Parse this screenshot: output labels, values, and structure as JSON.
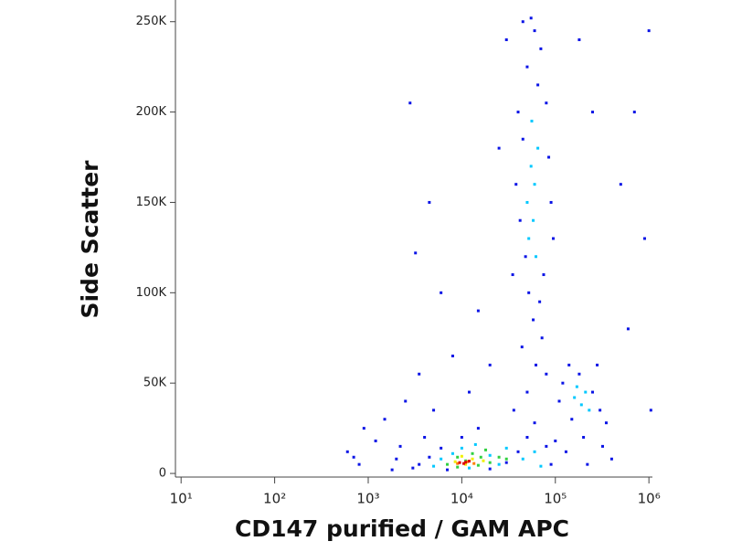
{
  "chart_data": {
    "type": "scatter",
    "x_label": "CD147 purified / GAM APC",
    "y_label": "Side Scatter",
    "xscale": "log",
    "xlim": [
      8.7,
      1090000
    ],
    "ylim": [
      -2000,
      262000
    ],
    "xticks": [
      {
        "value": 10,
        "label": "10¹"
      },
      {
        "value": 100,
        "label": "10²"
      },
      {
        "value": 1000,
        "label": "10³"
      },
      {
        "value": 10000,
        "label": "10⁴"
      },
      {
        "value": 100000,
        "label": "10⁵"
      },
      {
        "value": 1000000,
        "label": "10⁶"
      }
    ],
    "yticks": [
      0,
      {
        "value": 50000,
        "label": "50K"
      },
      {
        "value": 100000,
        "label": "100K"
      },
      {
        "value": 150000,
        "label": "150K"
      },
      {
        "value": 200000,
        "label": "200K"
      },
      {
        "value": 250000,
        "label": "250K"
      }
    ],
    "series": [
      {
        "color": "#0a14e6",
        "x": [
          600,
          800,
          1200,
          1500,
          2000,
          2500,
          3000,
          4000,
          5000,
          1800,
          900,
          2200,
          700,
          3500,
          2800,
          3200,
          4500,
          6000,
          8000,
          12000,
          15000,
          20000,
          25000,
          30000,
          35000,
          45000,
          55000,
          60000,
          70000,
          50000,
          65000,
          40000,
          80000,
          45000,
          85000,
          38000,
          90000,
          42000,
          95000,
          48000,
          75000,
          52000,
          68000,
          58000,
          72000,
          44000,
          62000,
          80000,
          50000,
          36000,
          120000,
          140000,
          180000,
          250000,
          300000,
          350000,
          200000,
          150000,
          110000,
          280000,
          320000,
          400000,
          130000,
          220000,
          700000,
          1000000,
          900000,
          600000,
          1050000,
          500000,
          250000,
          180000,
          3500,
          4500,
          6000,
          7000,
          10000,
          15000,
          20000,
          30000,
          40000,
          50000,
          60000,
          80000,
          90000,
          100000
        ],
        "values": [
          12000,
          5000,
          18000,
          30000,
          8000,
          40000,
          3000,
          20000,
          35000,
          2000,
          25000,
          15000,
          9000,
          55000,
          205000,
          122000,
          150000,
          100000,
          65000,
          45000,
          90000,
          60000,
          180000,
          240000,
          110000,
          250000,
          252000,
          245000,
          235000,
          225000,
          215000,
          200000,
          205000,
          185000,
          175000,
          160000,
          150000,
          140000,
          130000,
          120000,
          110000,
          100000,
          95000,
          85000,
          75000,
          70000,
          60000,
          55000,
          45000,
          35000,
          50000,
          60000,
          55000,
          45000,
          35000,
          28000,
          20000,
          30000,
          40000,
          60000,
          15000,
          8000,
          12000,
          5000,
          200000,
          245000,
          130000,
          80000,
          35000,
          160000,
          200000,
          240000,
          5000,
          9000,
          14000,
          2000,
          20000,
          25000,
          2500,
          6000,
          12000,
          20000,
          28000,
          15000,
          5000,
          18000
        ]
      },
      {
        "color": "#00c8ff",
        "x": [
          5000,
          6000,
          8000,
          10000,
          14000,
          20000,
          25000,
          30000,
          45000,
          60000,
          70000,
          12000,
          55000,
          60000,
          50000,
          58000,
          65000,
          52000,
          62000,
          56000,
          160000,
          190000,
          210000,
          170000,
          230000
        ],
        "values": [
          4000,
          8000,
          11000,
          14000,
          16000,
          10000,
          5000,
          14000,
          8000,
          12000,
          4000,
          3000,
          170000,
          160000,
          150000,
          140000,
          180000,
          130000,
          120000,
          195000,
          42000,
          38000,
          45000,
          48000,
          35000
        ]
      },
      {
        "color": "#30d040",
        "x": [
          7000,
          9000,
          11000,
          13000,
          16000,
          20000,
          25000,
          18000,
          9000,
          30000,
          15000
        ],
        "values": [
          5000,
          9000,
          7000,
          11000,
          9000,
          6000,
          9000,
          13000,
          3500,
          8000,
          4500
        ]
      },
      {
        "color": "#f0f000",
        "x": [
          8500,
          11000,
          13000,
          17000,
          10000
        ],
        "values": [
          6500,
          5000,
          8000,
          7000,
          9500
        ]
      },
      {
        "color": "#ff8000",
        "x": [
          9000,
          11500,
          13500
        ],
        "values": [
          5500,
          6500,
          5500
        ]
      },
      {
        "color": "#e00000",
        "x": [
          9500,
          10500,
          11000,
          12000
        ],
        "values": [
          6000,
          5500,
          6200,
          6800
        ]
      }
    ]
  }
}
